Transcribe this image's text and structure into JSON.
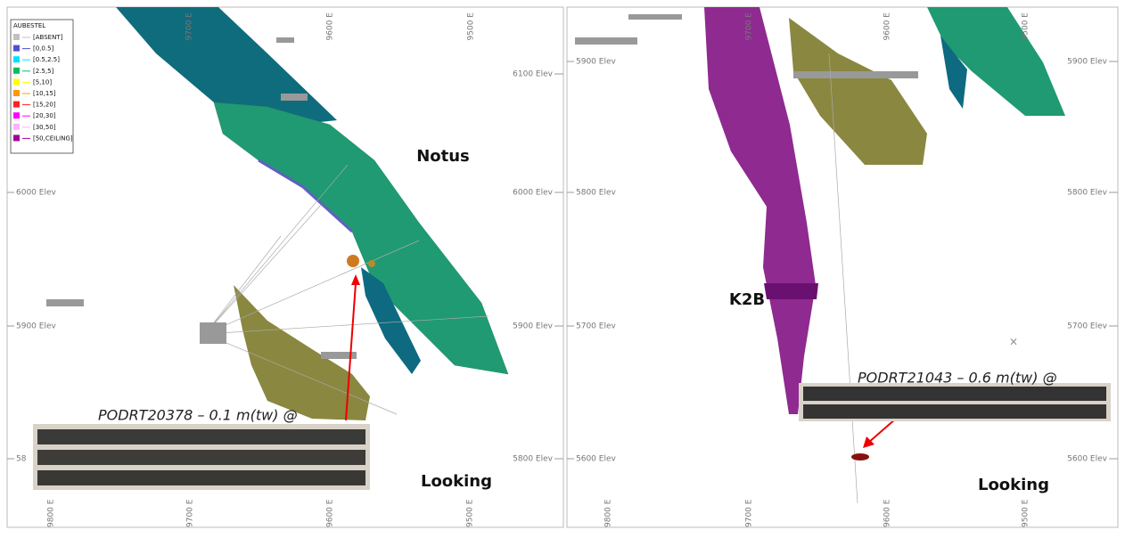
{
  "legend": {
    "title": "AUBESTEL",
    "items": [
      {
        "label": "[ABSENT]",
        "color": "#c0c0c0"
      },
      {
        "label": "[0,0.5]",
        "color": "#5050d0"
      },
      {
        "label": "[0.5,2.5]",
        "color": "#00e0ff"
      },
      {
        "label": "[2.5,5]",
        "color": "#00c060"
      },
      {
        "label": "[5,10]",
        "color": "#ffff00"
      },
      {
        "label": "[10,15]",
        "color": "#ff9900"
      },
      {
        "label": "[15,20]",
        "color": "#ff2020"
      },
      {
        "label": "[20,30]",
        "color": "#ff00ff"
      },
      {
        "label": "[30,50]",
        "color": "#ffb0ff"
      },
      {
        "label": "[50,CEILING]",
        "color": "#a000a0"
      }
    ]
  },
  "panels": [
    {
      "elev_left": [
        "6000 Elev",
        "5900 Elev",
        "58"
      ],
      "elev_right": [
        "6100 Elev",
        "6000 Elev",
        "5900 Elev",
        "5800 Elev"
      ],
      "easting_top": [
        "9700 E",
        "9600 E",
        "9500 E"
      ],
      "easting_bottom": [
        "9800 E",
        "9700 E",
        "9600 E",
        "9500 E"
      ],
      "zone": "Notus",
      "callout": "PODRT20378 – 0.1 m(tw) @",
      "footer": "Looking"
    },
    {
      "elev_left": [
        "5900 Elev",
        "5800 Elev",
        "5700 Elev",
        "5600 Elev"
      ],
      "elev_right": [
        "5900 Elev",
        "5800 Elev",
        "5700 Elev",
        "5600 Elev"
      ],
      "easting_top": [
        "9700 E",
        "9600 E",
        "9500 E"
      ],
      "easting_bottom": [
        "9800 E",
        "9700 E",
        "9600 E",
        "9500 E"
      ],
      "zone": "K2B",
      "callout": "PODRT21043 – 0.6 m(tw) @",
      "footer": "Looking"
    }
  ]
}
